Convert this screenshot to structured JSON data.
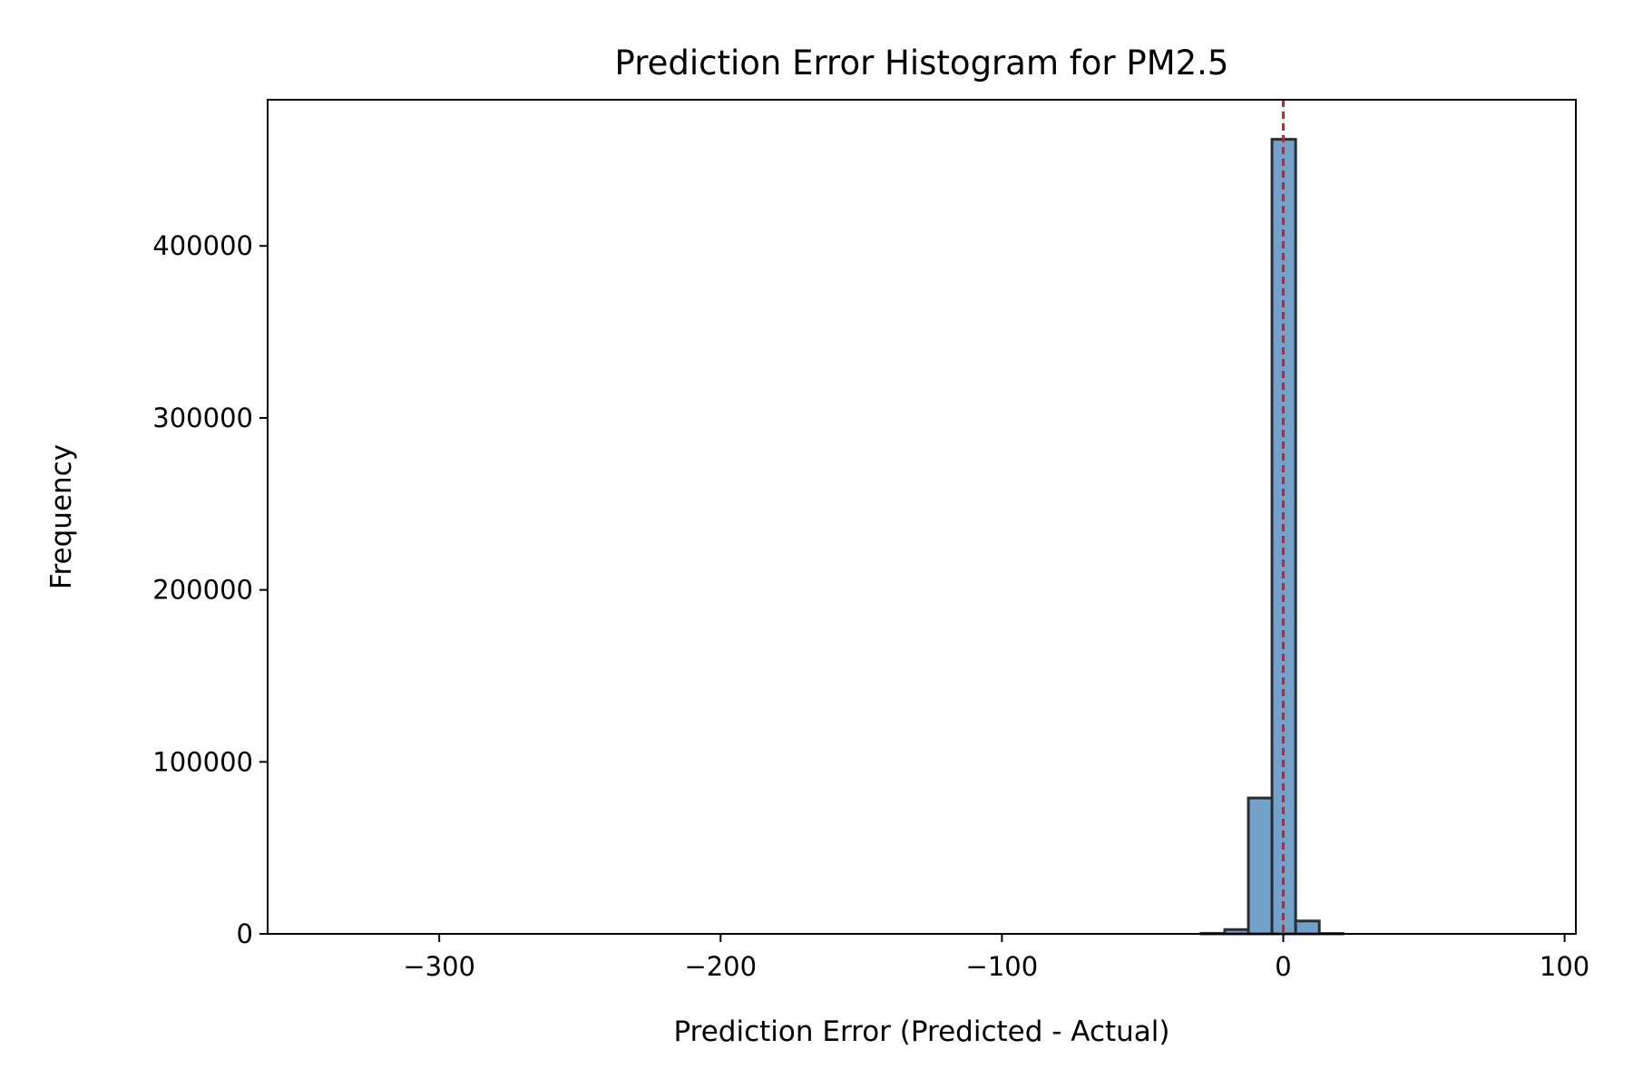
{
  "chart_data": {
    "type": "bar",
    "subtype": "histogram",
    "title": "Prediction Error Histogram for PM2.5",
    "xlabel": "Prediction Error (Predicted - Actual)",
    "ylabel": "Frequency",
    "xlim": [
      -361,
      104
    ],
    "ylim": [
      0,
      485000
    ],
    "x_ticks": [
      -300,
      -200,
      -100,
      0,
      100
    ],
    "x_tick_labels": [
      "−300",
      "−200",
      "−100",
      "0",
      "100"
    ],
    "y_ticks": [
      0,
      100000,
      200000,
      300000,
      400000
    ],
    "y_tick_labels": [
      "0",
      "100000",
      "200000",
      "300000",
      "400000"
    ],
    "bin_edges": [
      -340,
      -331.6,
      -323.2,
      -314.8,
      -306.4,
      -298,
      -289.6,
      -281.2,
      -272.8,
      -264.4,
      -256,
      -247.6,
      -239.2,
      -230.8,
      -222.4,
      -214,
      -205.6,
      -197.2,
      -188.8,
      -180.4,
      -172,
      -163.6,
      -155.2,
      -146.8,
      -138.4,
      -130,
      -121.6,
      -113.2,
      -104.8,
      -96.4,
      -88,
      -79.6,
      -71.2,
      -62.8,
      -54.4,
      -46,
      -37.6,
      -29.2,
      -20.8,
      -12.4,
      -4,
      4.4,
      12.8,
      21.2,
      29.6,
      38,
      46.4,
      54.8,
      63.2,
      71.6,
      80
    ],
    "counts": [
      0,
      0,
      0,
      0,
      0,
      0,
      0,
      0,
      0,
      0,
      0,
      0,
      0,
      0,
      0,
      0,
      0,
      0,
      0,
      0,
      0,
      0,
      0,
      0,
      0,
      0,
      0,
      0,
      0,
      0,
      0,
      0,
      0,
      0,
      0,
      0,
      0,
      300,
      2500,
      79000,
      462000,
      7500,
      200,
      0,
      0,
      0,
      0,
      0,
      0,
      0
    ],
    "reference_line": {
      "x": 0,
      "style": "dashed",
      "color": "#e8141c"
    },
    "bar_fill": "#72a1c9",
    "bar_edge": "#2a2f33",
    "grid": false,
    "legend": false
  }
}
